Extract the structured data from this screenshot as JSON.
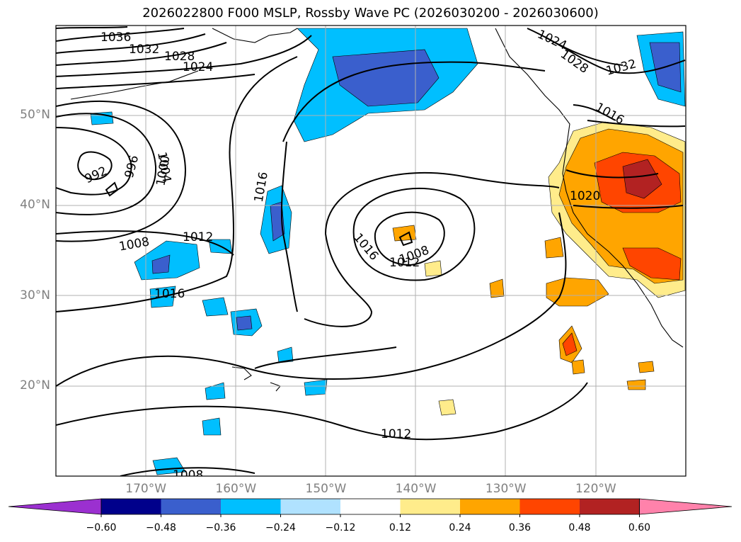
{
  "title": "2026022800 F000 MSLP, Rossby Wave PC (2026030200 - 2026030600)",
  "map": {
    "lat_labels": [
      {
        "text": "50°N",
        "lat": 50
      },
      {
        "text": "40°N",
        "lat": 40
      },
      {
        "text": "30°N",
        "lat": 30
      },
      {
        "text": "20°N",
        "lat": 20
      }
    ],
    "lon_labels": [
      {
        "text": "170°W",
        "lon": -170
      },
      {
        "text": "160°W",
        "lon": -160
      },
      {
        "text": "150°W",
        "lon": -150
      },
      {
        "text": "140°W",
        "lon": -140
      },
      {
        "text": "130°W",
        "lon": -130
      },
      {
        "text": "120°W",
        "lon": -120
      }
    ],
    "extent": {
      "lon_min": -180,
      "lon_max": -110,
      "lat_min": 10,
      "lat_max": 60
    },
    "gridlines": true,
    "contour_labels": [
      "1036",
      "1032",
      "1028",
      "1024",
      "992",
      "996",
      "1000",
      "1004",
      "1008",
      "1012",
      "1016",
      "1016",
      "1008",
      "1012",
      "1016",
      "1020",
      "1012",
      "1024",
      "1028",
      "1032",
      "1016",
      "1008"
    ]
  },
  "colorbar": {
    "ticks": [
      "−0.60",
      "−0.48",
      "−0.36",
      "−0.24",
      "−0.12",
      "0.12",
      "0.24",
      "0.36",
      "0.48",
      "0.60"
    ],
    "colors": [
      "#9b30d0",
      "#00008b",
      "#3a5fcd",
      "#00bfff",
      "#b0e2ff",
      "#ffffff",
      "#ffec8b",
      "#ffa500",
      "#ff4500",
      "#b22222",
      "#ff82ab"
    ]
  }
}
